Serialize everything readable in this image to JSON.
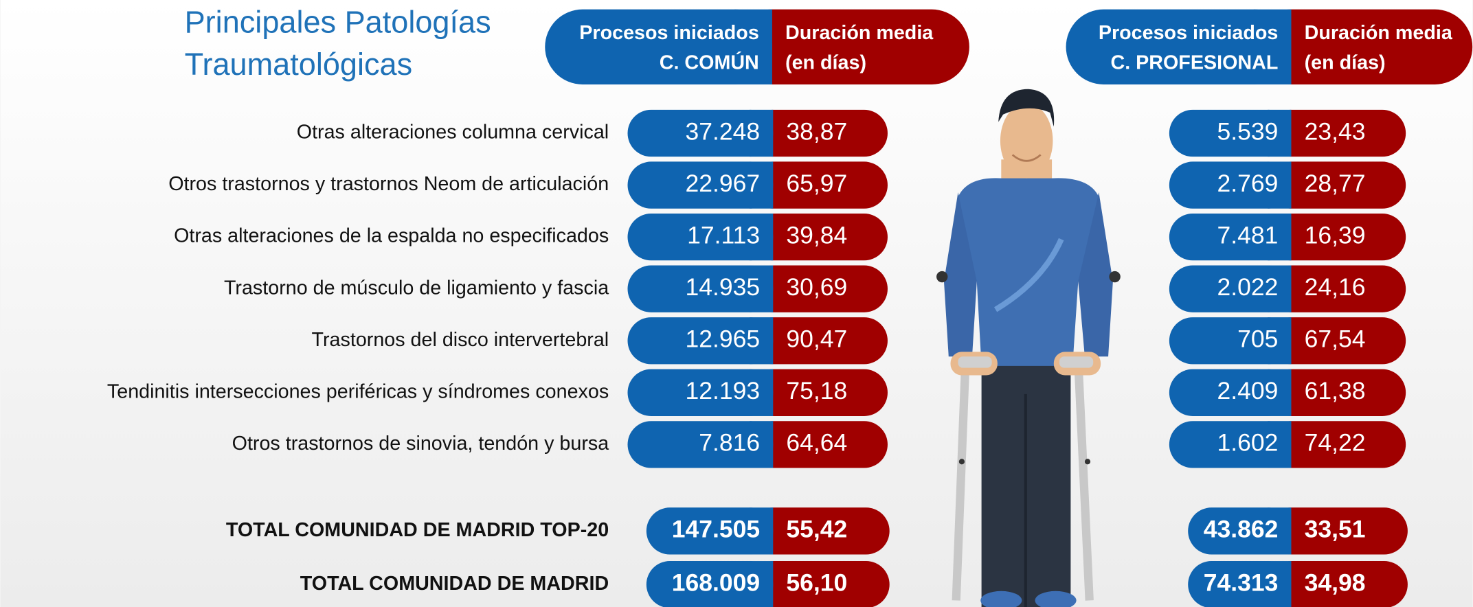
{
  "title": [
    "Principales Patologías",
    "Traumatológicas"
  ],
  "headers": {
    "comun": {
      "procesos": [
        "Procesos iniciados",
        "C. COMÚN"
      ],
      "duracion": [
        "Duración media",
        "(en días)"
      ]
    },
    "profesional": {
      "procesos": [
        "Procesos iniciados",
        "C. PROFESIONAL"
      ],
      "duracion": [
        "Duración media",
        "(en días)"
      ]
    }
  },
  "rows": [
    {
      "label": "Otras alteraciones columna cervical",
      "comun": [
        "37.248",
        "38,87"
      ],
      "profesional": [
        "5.539",
        "23,43"
      ]
    },
    {
      "label": "Otros trastornos y trastornos Neom de articulación",
      "comun": [
        "22.967",
        "65,97"
      ],
      "profesional": [
        "2.769",
        "28,77"
      ]
    },
    {
      "label": "Otras alteraciones de la espalda no especificados",
      "comun": [
        "17.113",
        "39,84"
      ],
      "profesional": [
        "7.481",
        "16,39"
      ]
    },
    {
      "label": "Trastorno de músculo de ligamiento y fascia",
      "comun": [
        "14.935",
        "30,69"
      ],
      "profesional": [
        "2.022",
        "24,16"
      ]
    },
    {
      "label": "Trastornos del disco intervertebral",
      "comun": [
        "12.965",
        "90,47"
      ],
      "profesional": [
        "705",
        "67,54"
      ]
    },
    {
      "label": "Tendinitis intersecciones periféricas y síndromes conexos",
      "comun": [
        "12.193",
        "75,18"
      ],
      "profesional": [
        "2.409",
        "61,38"
      ]
    },
    {
      "label": "Otros trastornos de sinovia, tendón y bursa",
      "comun": [
        "7.816",
        "64,64"
      ],
      "profesional": [
        "1.602",
        "74,22"
      ]
    }
  ],
  "totals": [
    {
      "label": "TOTAL COMUNIDAD DE MADRID TOP-20",
      "comun": [
        "147.505",
        "55,42"
      ],
      "profesional": [
        "43.862",
        "33,51"
      ]
    },
    {
      "label": "TOTAL COMUNIDAD DE MADRID",
      "comun": [
        "168.009",
        "56,10"
      ],
      "profesional": [
        "74.313",
        "34,98"
      ]
    }
  ]
}
